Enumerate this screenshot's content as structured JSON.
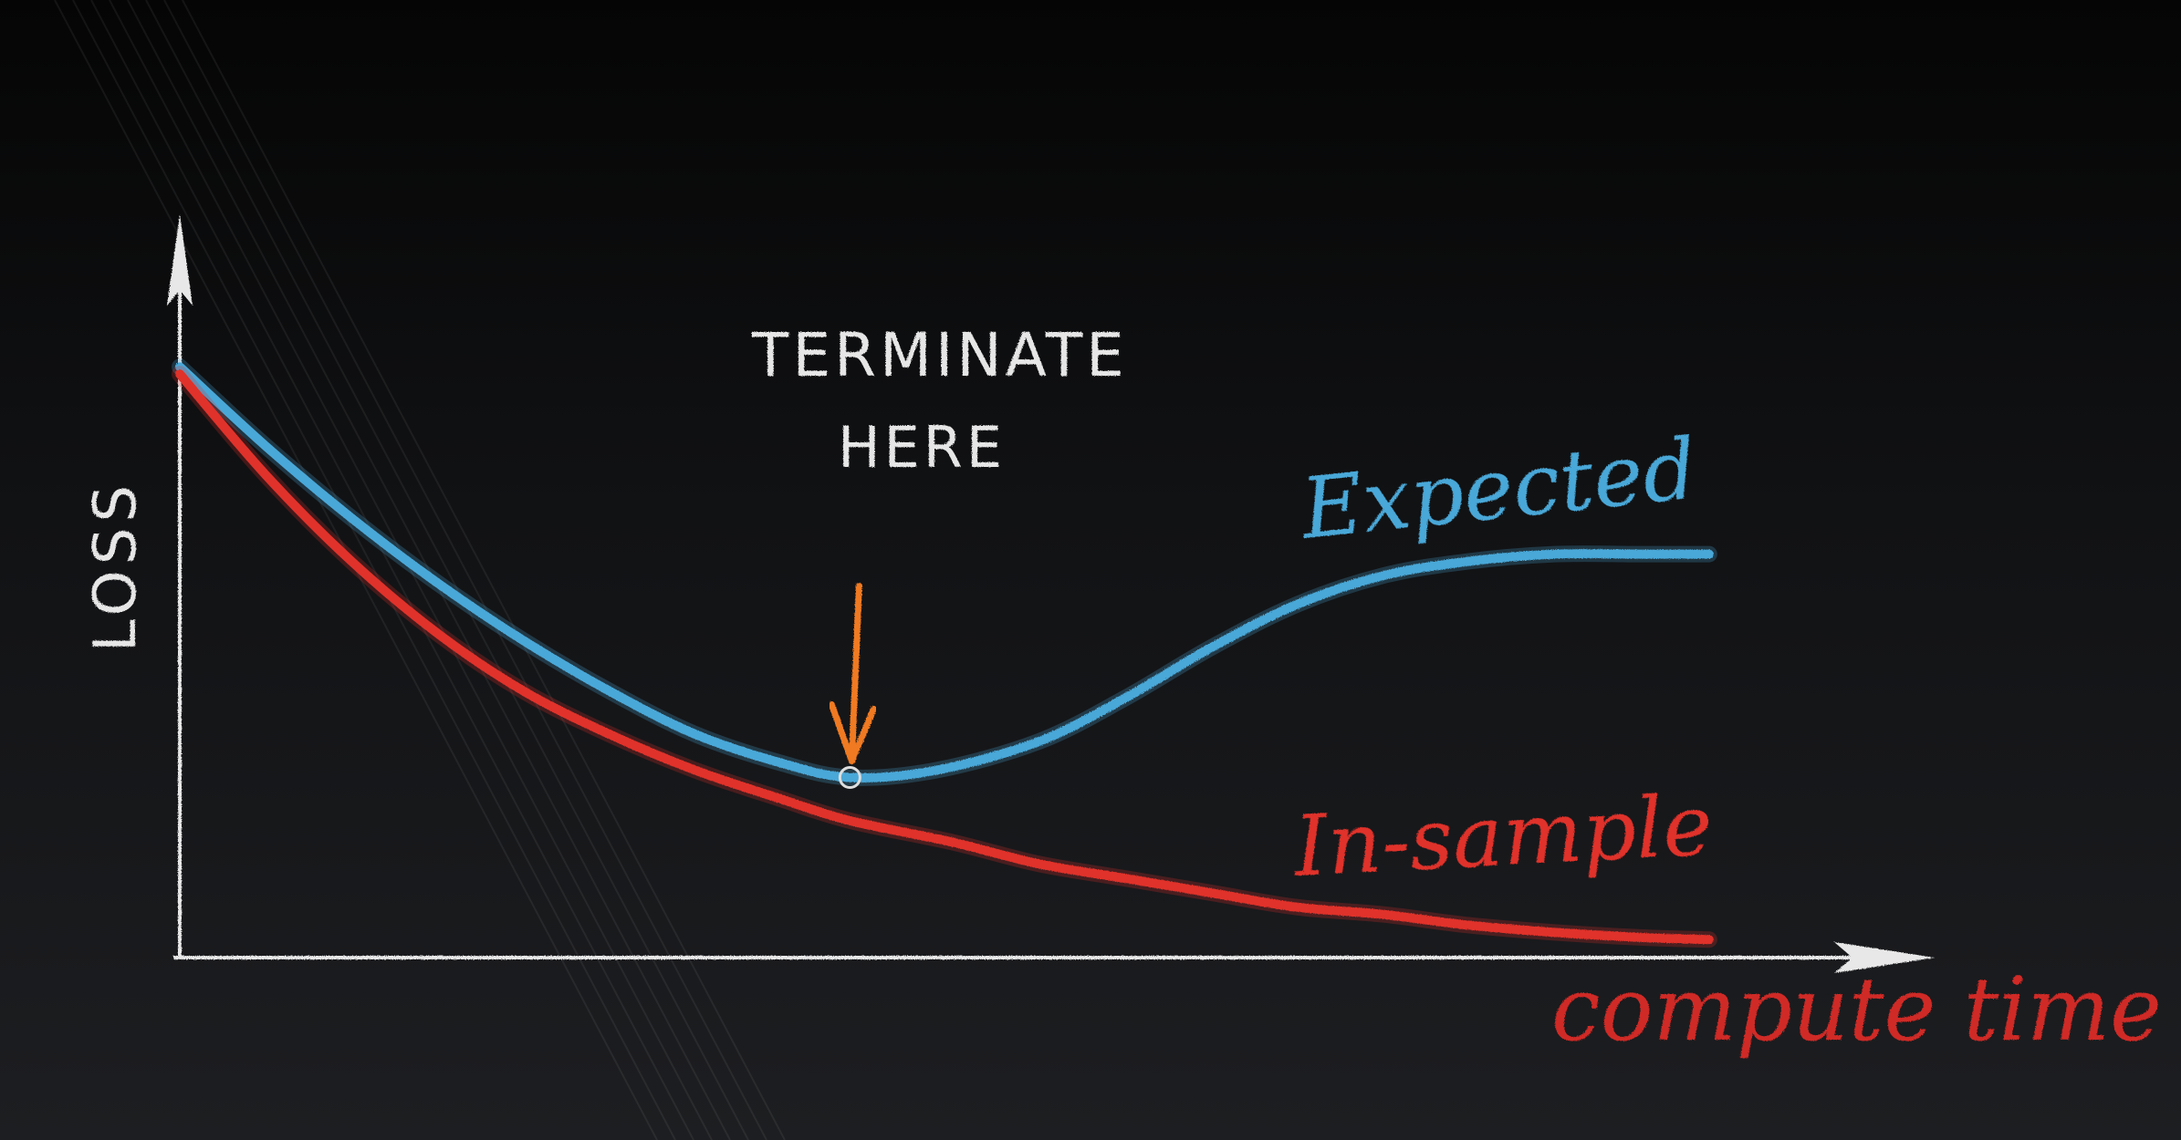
{
  "chart_data": {
    "type": "line",
    "title": "",
    "xlabel": "compute time",
    "ylabel": "LOSS",
    "grid": false,
    "xlim": [
      0,
      1
    ],
    "ylim": [
      0,
      1
    ],
    "annotation": {
      "line1": "TERMINATE",
      "line2": "HERE",
      "x": 0.39
    },
    "series": [
      {
        "name": "Expected",
        "color": "#4aa8d8",
        "x": [
          0.0,
          0.05,
          0.1,
          0.15,
          0.2,
          0.25,
          0.3,
          0.35,
          0.39,
          0.44,
          0.5,
          0.55,
          0.6,
          0.65,
          0.7,
          0.75,
          0.8,
          0.85,
          0.89
        ],
        "y": [
          0.82,
          0.71,
          0.61,
          0.52,
          0.44,
          0.37,
          0.31,
          0.27,
          0.25,
          0.26,
          0.3,
          0.36,
          0.43,
          0.49,
          0.53,
          0.55,
          0.56,
          0.56,
          0.56
        ]
      },
      {
        "name": "In-sample",
        "color": "#e0302c",
        "x": [
          0.0,
          0.05,
          0.1,
          0.15,
          0.2,
          0.25,
          0.3,
          0.35,
          0.39,
          0.45,
          0.5,
          0.55,
          0.6,
          0.65,
          0.7,
          0.75,
          0.8,
          0.85,
          0.89
        ],
        "y": [
          0.81,
          0.67,
          0.55,
          0.45,
          0.37,
          0.31,
          0.26,
          0.22,
          0.19,
          0.16,
          0.13,
          0.11,
          0.09,
          0.07,
          0.06,
          0.045,
          0.035,
          0.028,
          0.025
        ]
      }
    ]
  }
}
